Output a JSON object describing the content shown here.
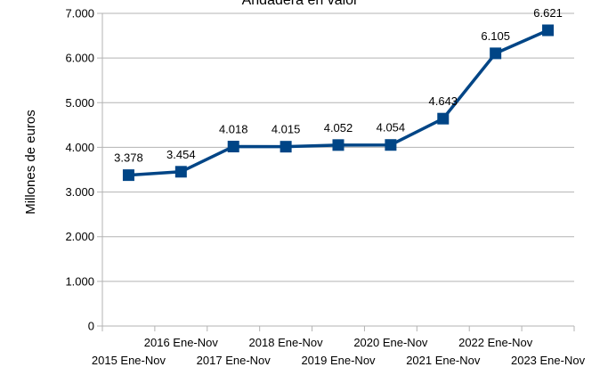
{
  "chart_data": {
    "type": "line",
    "title": "Andadera en valor",
    "xlabel": "",
    "ylabel": "Millones de euros",
    "categories": [
      "2015 Ene-Nov",
      "2016 Ene-Nov",
      "2017 Ene-Nov",
      "2018 Ene-Nov",
      "2019 Ene-Nov",
      "2020 Ene-Nov",
      "2021 Ene-Nov",
      "2022 Ene-Nov",
      "2023 Ene-Nov"
    ],
    "series": [
      {
        "values": [
          3378,
          3454,
          4018,
          4015,
          4052,
          4054,
          4643,
          6105,
          6621
        ],
        "labels": [
          "3.378",
          "3.454",
          "4.018",
          "4.015",
          "4.052",
          "4.054",
          "4.643",
          "6.105",
          "6.621"
        ],
        "color": "#004586"
      }
    ],
    "ylim": [
      0,
      7000
    ],
    "yticks": [
      0,
      1000,
      2000,
      3000,
      4000,
      5000,
      6000,
      7000
    ],
    "ytick_labels": [
      "0",
      "1.000",
      "2.000",
      "3.000",
      "4.000",
      "5.000",
      "6.000",
      "7.000"
    ],
    "grid": true,
    "legend": "none",
    "marker": "square"
  }
}
